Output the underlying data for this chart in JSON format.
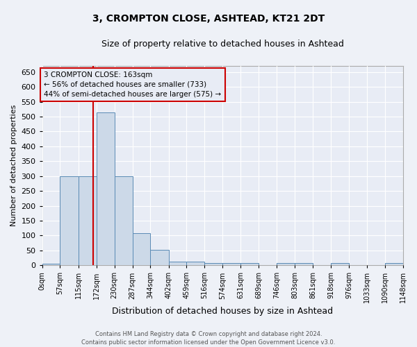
{
  "title": "3, CROMPTON CLOSE, ASHTEAD, KT21 2DT",
  "subtitle": "Size of property relative to detached houses in Ashtead",
  "xlabel": "Distribution of detached houses by size in Ashtead",
  "ylabel": "Number of detached properties",
  "bin_edges": [
    0,
    57,
    115,
    172,
    230,
    287,
    344,
    402,
    459,
    516,
    574,
    631,
    689,
    746,
    803,
    861,
    918,
    976,
    1033,
    1090,
    1148
  ],
  "bin_counts": [
    5,
    300,
    300,
    515,
    300,
    107,
    52,
    13,
    13,
    8,
    8,
    8,
    0,
    8,
    8,
    0,
    8,
    0,
    0,
    8
  ],
  "bar_facecolor": "#ccd9e8",
  "bar_edgecolor": "#5a8ab5",
  "vline_x": 163,
  "vline_color": "#cc0000",
  "ylim": [
    0,
    670
  ],
  "yticks": [
    0,
    50,
    100,
    150,
    200,
    250,
    300,
    350,
    400,
    450,
    500,
    550,
    600,
    650
  ],
  "annotation_line1": "3 CROMPTON CLOSE: 163sqm",
  "annotation_line2": "← 56% of detached houses are smaller (733)",
  "annotation_line3": "44% of semi-detached houses are larger (575) →",
  "footer_text": "Contains HM Land Registry data © Crown copyright and database right 2024.\nContains public sector information licensed under the Open Government Licence v3.0.",
  "bg_color": "#eef1f7",
  "plot_bg_color": "#e8ecf5",
  "grid_color": "#ffffff",
  "ann_box_color": "#e8ecf5",
  "ann_border_color": "#cc0000"
}
